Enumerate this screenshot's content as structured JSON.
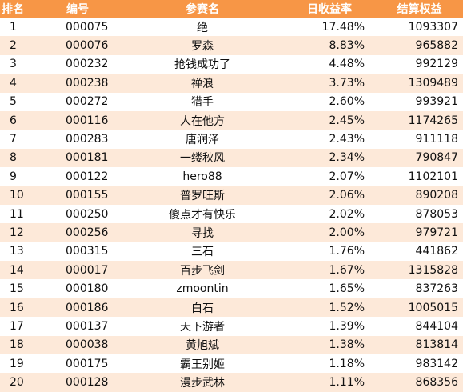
{
  "headers": {
    "rank": "排名",
    "id": "编号",
    "name": "参赛名",
    "daily_return": "日收益率",
    "equity": "结算权益"
  },
  "colors": {
    "header_bg": "#F79646",
    "header_text": "#FFFFFF",
    "alt_row_bg": "#FDE9D9",
    "row_bg": "#FFFFFF"
  },
  "rows": [
    {
      "rank": "1",
      "id": "000075",
      "name": "绝",
      "daily_return": "17.48%",
      "equity": "1093307"
    },
    {
      "rank": "2",
      "id": "000076",
      "name": "罗森",
      "daily_return": "8.83%",
      "equity": "965882"
    },
    {
      "rank": "3",
      "id": "000232",
      "name": "抢钱成功了",
      "daily_return": "4.48%",
      "equity": "992129"
    },
    {
      "rank": "4",
      "id": "000238",
      "name": "禅浪",
      "daily_return": "3.73%",
      "equity": "1309489"
    },
    {
      "rank": "5",
      "id": "000272",
      "name": "猎手",
      "daily_return": "2.60%",
      "equity": "993921"
    },
    {
      "rank": "6",
      "id": "000116",
      "name": "人在他方",
      "daily_return": "2.45%",
      "equity": "1174265"
    },
    {
      "rank": "7",
      "id": "000283",
      "name": "唐润泽",
      "daily_return": "2.43%",
      "equity": "911118"
    },
    {
      "rank": "8",
      "id": "000181",
      "name": "一缕秋风",
      "daily_return": "2.34%",
      "equity": "790847"
    },
    {
      "rank": "9",
      "id": "000122",
      "name": "hero88",
      "daily_return": "2.07%",
      "equity": "1102101"
    },
    {
      "rank": "10",
      "id": "000155",
      "name": "普罗旺斯",
      "daily_return": "2.06%",
      "equity": "890208"
    },
    {
      "rank": "11",
      "id": "000250",
      "name": "傻点才有快乐",
      "daily_return": "2.02%",
      "equity": "878053"
    },
    {
      "rank": "12",
      "id": "000256",
      "name": "寻找",
      "daily_return": "2.00%",
      "equity": "979721"
    },
    {
      "rank": "13",
      "id": "000315",
      "name": "三石",
      "daily_return": "1.76%",
      "equity": "441862"
    },
    {
      "rank": "14",
      "id": "000017",
      "name": "百步飞剑",
      "daily_return": "1.67%",
      "equity": "1315828"
    },
    {
      "rank": "15",
      "id": "000180",
      "name": "zmoontin",
      "daily_return": "1.65%",
      "equity": "837263"
    },
    {
      "rank": "16",
      "id": "000186",
      "name": "白石",
      "daily_return": "1.52%",
      "equity": "1005015"
    },
    {
      "rank": "17",
      "id": "000137",
      "name": "天下游者",
      "daily_return": "1.39%",
      "equity": "844104"
    },
    {
      "rank": "18",
      "id": "000038",
      "name": "黄旭斌",
      "daily_return": "1.38%",
      "equity": "813814"
    },
    {
      "rank": "19",
      "id": "000175",
      "name": "霸王别姬",
      "daily_return": "1.18%",
      "equity": "983142"
    },
    {
      "rank": "20",
      "id": "000128",
      "name": "漫步武林",
      "daily_return": "1.11%",
      "equity": "868356"
    }
  ]
}
